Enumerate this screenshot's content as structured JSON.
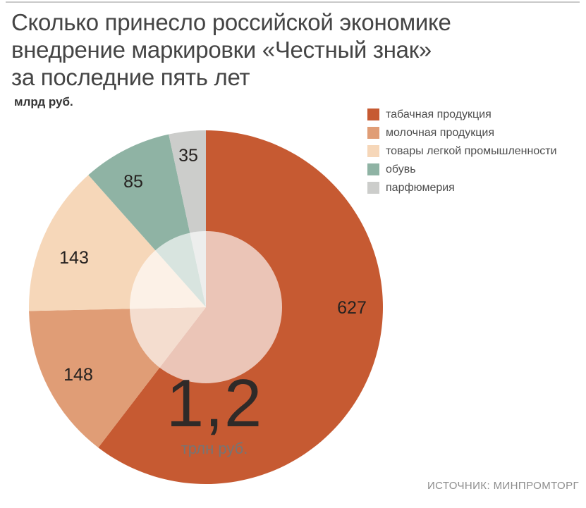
{
  "title": {
    "lines": [
      "Сколько принесло российской экономике",
      "внедрение маркировки «Честный знак»",
      "за последние пять лет"
    ]
  },
  "unit_label": "млрд руб.",
  "source": "ИСТОЧНИК: МИНПРОМТОРГ",
  "chart_data": {
    "type": "pie",
    "title": "Сколько принесло российской экономике внедрение маркировки «Честный знак» за последние пять лет",
    "unit": "млрд руб.",
    "labels": [
      "табачная продукция",
      "молочная продукция",
      "товары легкой промышленности",
      "обувь",
      "парфюмерия"
    ],
    "values": [
      627,
      148,
      143,
      85,
      35
    ],
    "colors": [
      "#c65a32",
      "#e09d76",
      "#f6d7b9",
      "#8fb3a4",
      "#cccdcb"
    ],
    "start_angle_deg": 0,
    "direction": "clockwise",
    "legend_position": "top-right",
    "center_label": {
      "value": "1,2",
      "unit": "трлн руб."
    }
  }
}
